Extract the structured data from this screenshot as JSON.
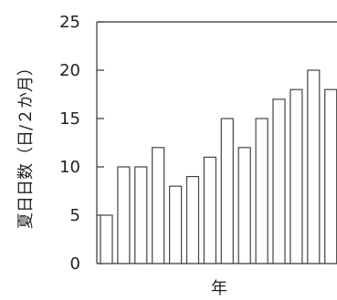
{
  "chart_data": {
    "type": "bar",
    "xlabel": "年",
    "ylabel": "夏日日数（日/２か月）",
    "ylim": [
      0,
      25
    ],
    "yticks": [
      0,
      5,
      10,
      15,
      20,
      25
    ],
    "values": [
      5,
      10,
      10,
      12,
      8,
      9,
      11,
      15,
      12,
      15,
      17,
      18,
      20,
      18
    ],
    "bar_fill": "#ffffff",
    "bar_stroke": "#444444",
    "axis_color": "#333333"
  }
}
